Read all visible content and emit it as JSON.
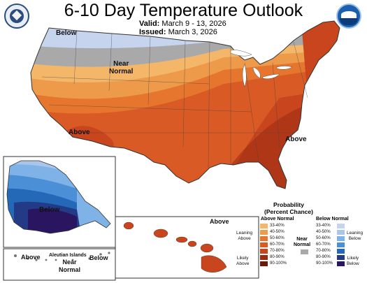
{
  "header": {
    "title": "6-10 Day Temperature Outlook",
    "valid_label": "Valid:",
    "valid_value": "March 9 - 13, 2026",
    "issued_label": "Issued:",
    "issued_value": "March 3, 2026"
  },
  "logos": {
    "left": "doc-seal-icon",
    "right": "noaa-logo-icon"
  },
  "map_labels": {
    "conus_below": "Below",
    "conus_near_line1": "Near",
    "conus_near_line2": "Normal",
    "conus_above_west": "Above",
    "conus_above_east": "Above",
    "alaska_below": "Below",
    "hawaii_above": "Above",
    "aleutian_title": "Aleutian Islands",
    "aleutian_above": "Above",
    "aleutian_near_line1": "Near",
    "aleutian_near_line2": "Normal",
    "aleutian_below": "Below"
  },
  "legend": {
    "title_line1": "Probability",
    "title_line2": "(Percent Chance)",
    "above_header": "Above Normal",
    "below_header": "Below Normal",
    "near_line1": "Near",
    "near_line2": "Normal",
    "leaning_above_line1": "Leaning",
    "leaning_above_line2": "Above",
    "likely_above_line1": "Likely",
    "likely_above_line2": "Above",
    "leaning_below_line1": "Leaning",
    "leaning_below_line2": "Below",
    "likely_below_line1": "Likely",
    "likely_below_line2": "Below",
    "above_rows": [
      {
        "label": "33-40%",
        "color": "#f4b76a"
      },
      {
        "label": "40-50%",
        "color": "#ee9a4b"
      },
      {
        "label": "50-60%",
        "color": "#e6762e"
      },
      {
        "label": "60-70%",
        "color": "#d95a24"
      },
      {
        "label": "70-80%",
        "color": "#c8451d"
      },
      {
        "label": "80-90%",
        "color": "#9a2c12"
      },
      {
        "label": "90-100%",
        "color": "#6b1a0a"
      }
    ],
    "below_rows": [
      {
        "label": "33-40%",
        "color": "#c6d4ee"
      },
      {
        "label": "40-50%",
        "color": "#a9c5ea"
      },
      {
        "label": "50-60%",
        "color": "#7fb2e6"
      },
      {
        "label": "60-70%",
        "color": "#4b8fd6"
      },
      {
        "label": "70-80%",
        "color": "#2468b8"
      },
      {
        "label": "80-90%",
        "color": "#233a87"
      },
      {
        "label": "90-100%",
        "color": "#2a1660"
      }
    ],
    "near_color": "#a9a9a9"
  }
}
